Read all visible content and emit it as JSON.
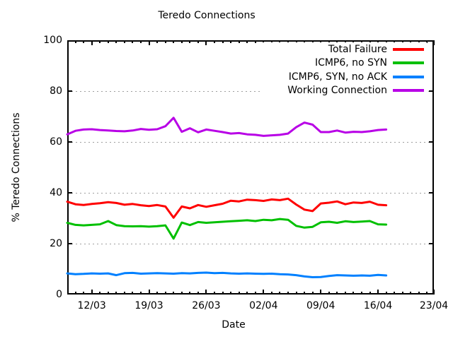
{
  "window": {
    "background": "#ffffff",
    "axis_color": "#000000",
    "grid_color": "#9e9e9e"
  },
  "chart_data": {
    "type": "line",
    "title": "Teredo Connections",
    "xlabel": "Date",
    "ylabel": "% Teredo Connections",
    "ylim": [
      0,
      100
    ],
    "y_ticks": [
      0,
      20,
      40,
      60,
      80,
      100
    ],
    "grid_horizontal_dashed_at": [
      20,
      40,
      60,
      80
    ],
    "x_tick_labels": [
      "12/03",
      "19/03",
      "26/03",
      "02/04",
      "09/04",
      "16/04",
      "23/04"
    ],
    "x_tick_days": [
      3,
      10,
      17,
      24,
      31,
      38,
      44.83
    ],
    "x_axis_span_days": 44.83,
    "x_minor_tick_every_days": 1,
    "legend_position": "top-right",
    "series": [
      {
        "name": "Total Failure",
        "color": "#ff0000",
        "start_day": 0,
        "step_days": 1,
        "values": [
          36.5,
          35.5,
          35.2,
          35.6,
          35.9,
          36.3,
          36.0,
          35.3,
          35.6,
          35.1,
          34.8,
          35.2,
          34.6,
          30.2,
          34.6,
          33.9,
          35.2,
          34.5,
          35.1,
          35.7,
          36.9,
          36.6,
          37.3,
          37.1,
          36.8,
          37.4,
          37.1,
          37.7,
          35.4,
          33.4,
          32.8,
          35.8,
          36.1,
          36.6,
          35.5,
          36.2,
          36.0,
          36.5,
          35.3,
          35.1
        ]
      },
      {
        "name": "ICMP6, no SYN",
        "color": "#00c000",
        "start_day": 0,
        "step_days": 1,
        "values": [
          28.2,
          27.4,
          27.2,
          27.4,
          27.6,
          28.9,
          27.3,
          26.9,
          26.8,
          26.9,
          26.7,
          26.9,
          27.2,
          22.0,
          28.3,
          27.3,
          28.5,
          28.2,
          28.4,
          28.6,
          28.8,
          29.0,
          29.2,
          28.9,
          29.4,
          29.2,
          29.7,
          29.4,
          27.0,
          26.3,
          26.6,
          28.4,
          28.6,
          28.2,
          28.8,
          28.5,
          28.7,
          28.9,
          27.6,
          27.5
        ]
      },
      {
        "name": "ICMP6, SYN, no ACK",
        "color": "#0080ff",
        "start_day": 0,
        "step_days": 1,
        "values": [
          8.3,
          8.0,
          8.1,
          8.3,
          8.2,
          8.3,
          7.6,
          8.4,
          8.5,
          8.2,
          8.3,
          8.4,
          8.3,
          8.2,
          8.4,
          8.3,
          8.5,
          8.6,
          8.4,
          8.5,
          8.3,
          8.2,
          8.3,
          8.2,
          8.1,
          8.2,
          8.0,
          7.9,
          7.6,
          7.1,
          6.8,
          6.9,
          7.3,
          7.6,
          7.5,
          7.4,
          7.5,
          7.4,
          7.7,
          7.5
        ]
      },
      {
        "name": "Working Connection",
        "color": "#b800e6",
        "start_day": 0,
        "step_days": 1,
        "values": [
          63.0,
          64.4,
          64.9,
          65.0,
          64.7,
          64.5,
          64.3,
          64.2,
          64.5,
          65.1,
          64.8,
          65.0,
          66.2,
          69.5,
          64.0,
          65.4,
          63.8,
          64.9,
          64.4,
          63.9,
          63.3,
          63.5,
          63.0,
          62.8,
          62.4,
          62.6,
          62.8,
          63.3,
          65.8,
          67.6,
          66.8,
          63.9,
          63.9,
          64.5,
          63.7,
          64.0,
          63.9,
          64.2,
          64.7,
          64.9
        ]
      }
    ]
  }
}
